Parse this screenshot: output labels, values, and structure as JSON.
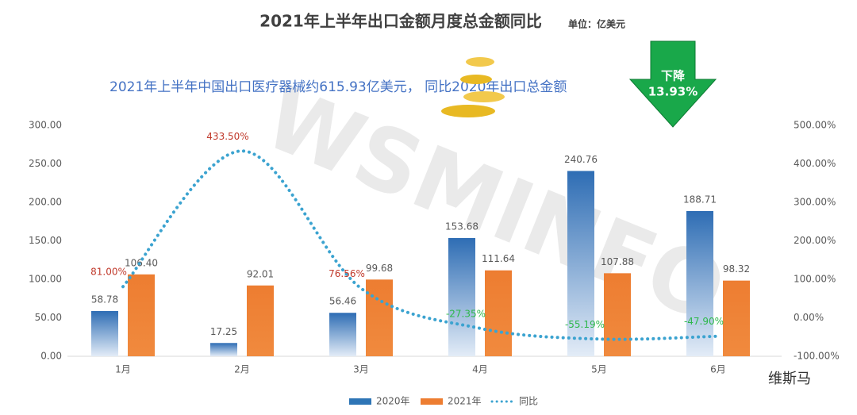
{
  "chart_data": {
    "type": "bar",
    "title": "2021年上半年出口金额月度总金额同比",
    "unit": "单位：亿美元",
    "annotation": "2021年上半年中国出口医疗器械约615.93亿美元， 同比2020年出口总金额",
    "arrow_text": [
      "下降",
      "13.93%"
    ],
    "watermark": "WSMINFO",
    "logo": "维斯马",
    "categories": [
      "1月",
      "2月",
      "3月",
      "4月",
      "5月",
      "6月"
    ],
    "series": [
      {
        "name": "2020年",
        "color": "#2e75b6",
        "values": [
          58.78,
          17.25,
          56.46,
          153.68,
          240.76,
          188.71
        ],
        "value_labels": [
          "58.78",
          "17.25",
          "56.46",
          "153.68",
          "240.76",
          "188.71"
        ]
      },
      {
        "name": "2021年",
        "color": "#ed7d31",
        "values": [
          106.4,
          92.01,
          99.68,
          111.64,
          107.88,
          98.32
        ],
        "value_labels": [
          "106.40",
          "92.01",
          "99.68",
          "111.64",
          "107.88",
          "98.32"
        ]
      },
      {
        "name": "同比",
        "type": "line",
        "axis": "y2",
        "color": "#3ba3d0",
        "values": [
          81,
          433.5,
          76.56,
          -27.35,
          -55.19,
          -47.9
        ],
        "value_labels": [
          "81.00%",
          "433.50%",
          "76.56%",
          "-27.35%",
          "-55.19%",
          "-47.90%"
        ]
      }
    ],
    "ylim": [
      0,
      300
    ],
    "yticks": [
      {
        "value": 0,
        "label": "0.00"
      },
      {
        "value": 50,
        "label": "50.00"
      },
      {
        "value": 100,
        "label": "100.00"
      },
      {
        "value": 150,
        "label": "150.00"
      },
      {
        "value": 200,
        "label": "200.00"
      },
      {
        "value": 250,
        "label": "250.00"
      },
      {
        "value": 300,
        "label": "300.00"
      }
    ],
    "y2lim": [
      -100,
      500
    ],
    "y2ticks": [
      {
        "value": -100,
        "label": "-100.00%"
      },
      {
        "value": 0,
        "label": "0.00%"
      },
      {
        "value": 100,
        "label": "100.00%"
      },
      {
        "value": 200,
        "label": "200.00%"
      },
      {
        "value": 300,
        "label": "300.00%"
      },
      {
        "value": 400,
        "label": "400.00%"
      },
      {
        "value": 500,
        "label": "500.00%"
      }
    ],
    "grid": false
  }
}
